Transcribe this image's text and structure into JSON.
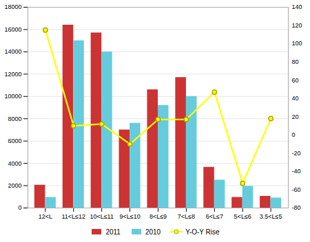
{
  "chart_data": {
    "type": "bar",
    "categories": [
      "12<L",
      "11<L≤12",
      "10<L≤11",
      "9<L≤10",
      "8<L≤9",
      "7<L≤8",
      "6<L≤7",
      "5<L≤6",
      "3.5<L≤5"
    ],
    "series": [
      {
        "name": "2011",
        "color": "#cc3333",
        "values": [
          2050,
          16400,
          15700,
          7000,
          10600,
          11700,
          3650,
          950,
          1050
        ]
      },
      {
        "name": "2010",
        "color": "#66ccdd",
        "values": [
          950,
          15000,
          14000,
          7600,
          9200,
          10000,
          2500,
          1950,
          900
        ]
      },
      {
        "name": "Y-O-Y Rise",
        "type": "line",
        "color": "#ffff00",
        "marker": "o",
        "axis": "y2",
        "values": [
          115,
          10,
          12,
          -10,
          17,
          17,
          47,
          -53,
          18
        ]
      }
    ],
    "ylim": [
      0,
      18000
    ],
    "yticks": [
      0,
      2000,
      4000,
      6000,
      8000,
      10000,
      12000,
      14000,
      16000,
      18000
    ],
    "y2lim": [
      -80,
      140
    ],
    "y2ticks": [
      -80,
      -60,
      -40,
      -20,
      0,
      20,
      40,
      60,
      80,
      100,
      120,
      140
    ],
    "grid": true,
    "legend": "bottom"
  }
}
